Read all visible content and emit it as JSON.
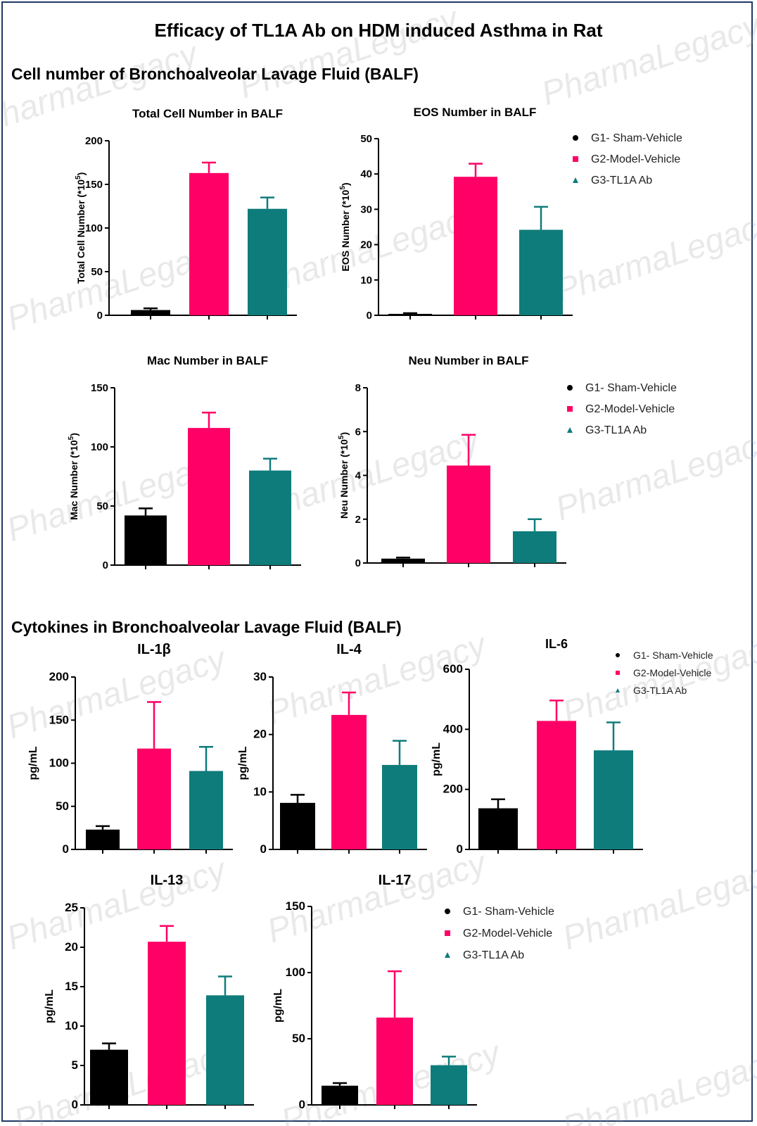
{
  "title": "Efficacy of TL1A Ab on HDM induced Asthma in Rat",
  "sections": [
    "Cell number of Bronchoalveolar Lavage Fluid (BALF)",
    "Cytokines in Bronchoalveolar Lavage Fluid (BALF)"
  ],
  "watermark": "PharmaLegacy",
  "groups": [
    {
      "name": "G1- Sham-Vehicle",
      "color": "#000000",
      "marker": "circle"
    },
    {
      "name": "G2-Model-Vehicle",
      "color": "#ff0066",
      "marker": "square"
    },
    {
      "name": "G3-TL1A Ab",
      "color": "#0e7c7b",
      "marker": "triangle"
    }
  ],
  "chart_data": [
    {
      "type": "bar",
      "title": "Total Cell Number in BALF",
      "ylabel": "Total Cell Number (*10^5)",
      "ylim": [
        0,
        200
      ],
      "yticks": [
        0,
        50,
        100,
        150,
        200
      ],
      "categories": [
        "G1- Sham-Vehicle",
        "G2-Model-Vehicle",
        "G3-TL1A Ab"
      ],
      "values": [
        6,
        163,
        122
      ],
      "errors": [
        2,
        12,
        13
      ]
    },
    {
      "type": "bar",
      "title": "EOS Number in BALF",
      "ylabel": "EOS Number (*10^5)",
      "ylim": [
        0,
        50
      ],
      "yticks": [
        0,
        10,
        20,
        30,
        40,
        50
      ],
      "categories": [
        "G1- Sham-Vehicle",
        "G2-Model-Vehicle",
        "G3-TL1A Ab"
      ],
      "values": [
        0.4,
        39.2,
        24.2
      ],
      "errors": [
        0.2,
        3.7,
        6.5
      ]
    },
    {
      "type": "bar",
      "title": "Mac Number in BALF",
      "ylabel": "Mac Number (*10^5)",
      "ylim": [
        0,
        150
      ],
      "yticks": [
        0,
        50,
        100,
        150
      ],
      "categories": [
        "G1- Sham-Vehicle",
        "G2-Model-Vehicle",
        "G3-TL1A Ab"
      ],
      "values": [
        42,
        116,
        80
      ],
      "errors": [
        6,
        13,
        10
      ]
    },
    {
      "type": "bar",
      "title": "Neu Number in BALF",
      "ylabel": "Neu Number (*10^5)",
      "ylim": [
        0,
        8
      ],
      "yticks": [
        0,
        2,
        4,
        6,
        8
      ],
      "categories": [
        "G1- Sham-Vehicle",
        "G2-Model-Vehicle",
        "G3-TL1A Ab"
      ],
      "values": [
        0.2,
        4.45,
        1.45
      ],
      "errors": [
        0.05,
        1.4,
        0.55
      ]
    },
    {
      "type": "bar",
      "title": "IL-1β",
      "ylabel": "pg/mL",
      "ylim": [
        0,
        200
      ],
      "yticks": [
        0,
        50,
        100,
        150,
        200
      ],
      "categories": [
        "G1- Sham-Vehicle",
        "G2-Model-Vehicle",
        "G3-TL1A Ab"
      ],
      "values": [
        23,
        117,
        91
      ],
      "errors": [
        4,
        54,
        28
      ]
    },
    {
      "type": "bar",
      "title": "IL-4",
      "ylabel": "pg/mL",
      "ylim": [
        0,
        30
      ],
      "yticks": [
        0,
        10,
        20,
        30
      ],
      "categories": [
        "G1- Sham-Vehicle",
        "G2-Model-Vehicle",
        "G3-TL1A Ab"
      ],
      "values": [
        8.1,
        23.4,
        14.7
      ],
      "errors": [
        1.4,
        3.9,
        4.2
      ]
    },
    {
      "type": "bar",
      "title": "IL-6",
      "ylabel": "pg/mL",
      "ylim": [
        0,
        600
      ],
      "yticks": [
        0,
        200,
        400,
        600
      ],
      "categories": [
        "G1- Sham-Vehicle",
        "G2-Model-Vehicle",
        "G3-TL1A Ab"
      ],
      "values": [
        137,
        428,
        330
      ],
      "errors": [
        30,
        68,
        93
      ]
    },
    {
      "type": "bar",
      "title": "IL-13",
      "ylabel": "pg/mL",
      "ylim": [
        0,
        25
      ],
      "yticks": [
        0,
        5,
        10,
        15,
        20,
        25
      ],
      "categories": [
        "G1- Sham-Vehicle",
        "G2-Model-Vehicle",
        "G3-TL1A Ab"
      ],
      "values": [
        7.0,
        20.7,
        13.9
      ],
      "errors": [
        0.8,
        2.0,
        2.4
      ]
    },
    {
      "type": "bar",
      "title": "IL-17",
      "ylabel": "pg/mL",
      "ylim": [
        0,
        150
      ],
      "yticks": [
        0,
        50,
        100,
        150
      ],
      "categories": [
        "G1- Sham-Vehicle",
        "G2-Model-Vehicle",
        "G3-TL1A Ab"
      ],
      "values": [
        14.5,
        66,
        30
      ],
      "errors": [
        2,
        35,
        6.5
      ]
    }
  ]
}
